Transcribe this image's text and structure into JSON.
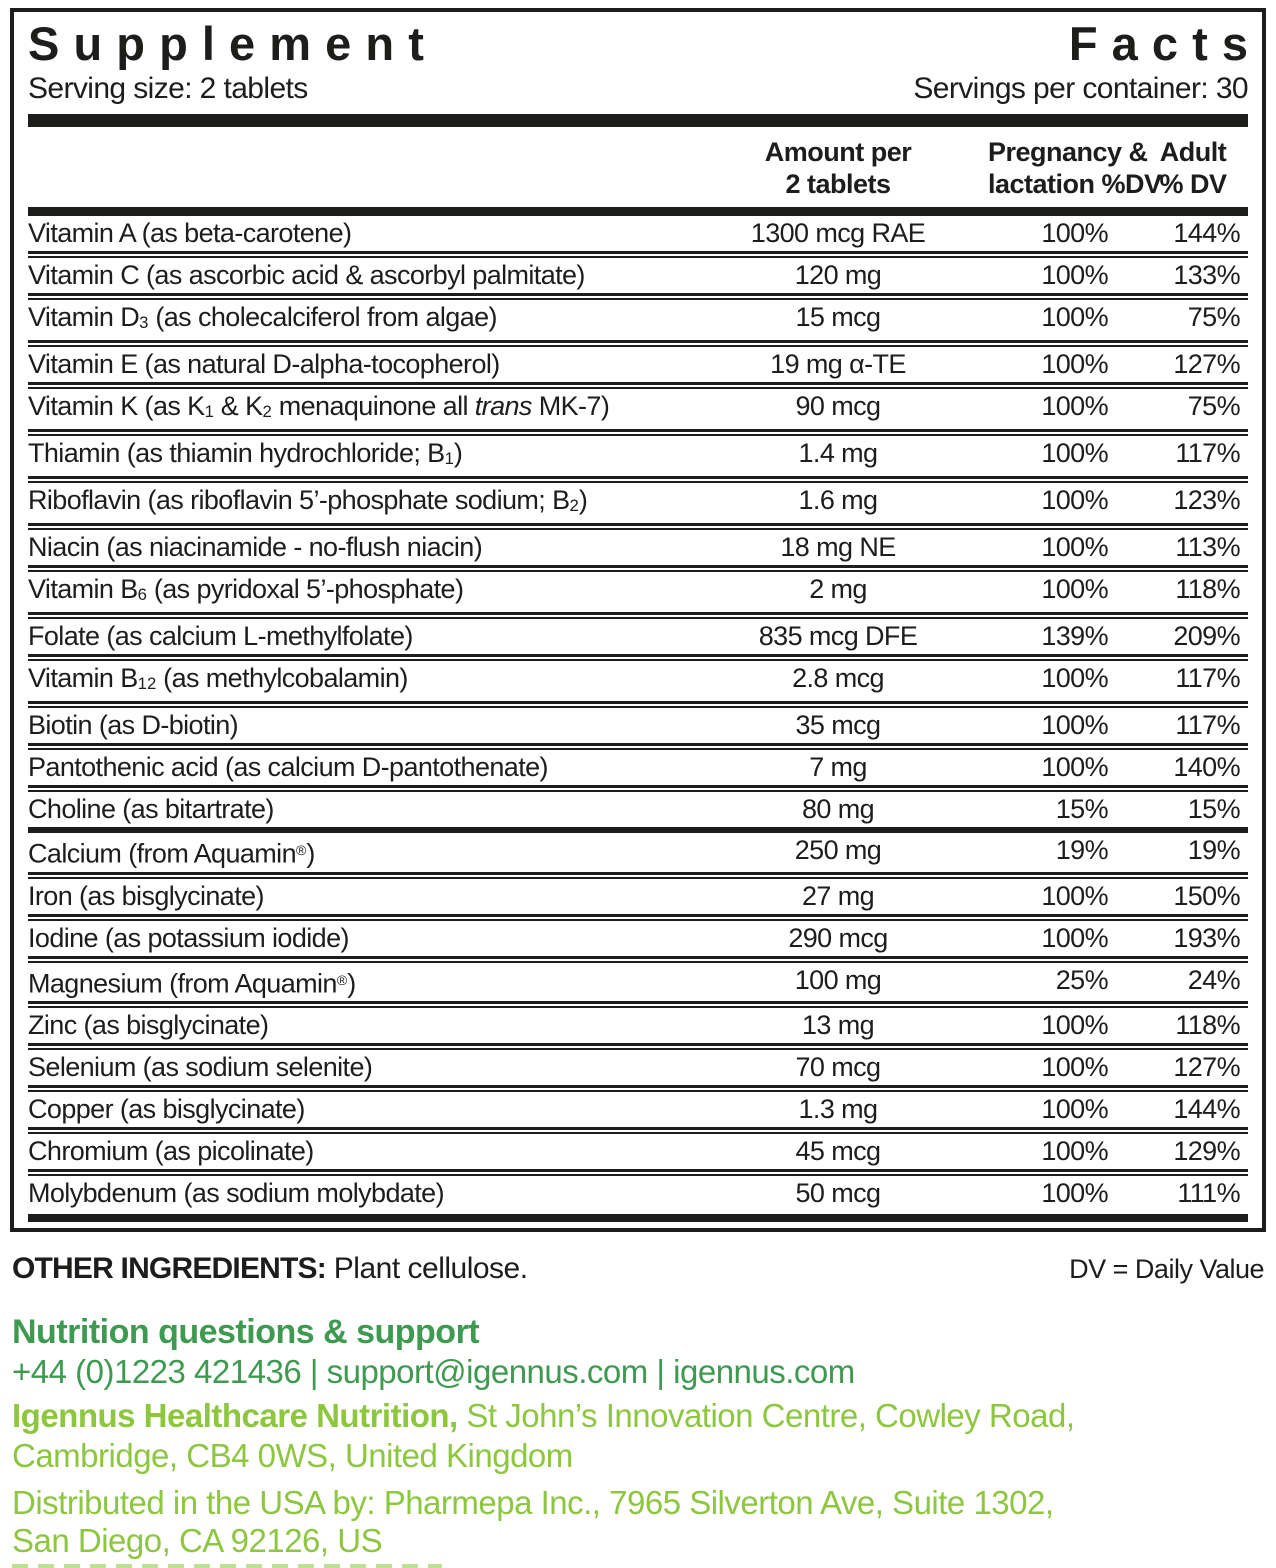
{
  "colors": {
    "ink": "#1d1d1b",
    "green_medium": "#3f9a51",
    "green_light": "#8dc63f"
  },
  "header": {
    "title_left": "Supplement",
    "title_right": "Facts",
    "serving_size": "Serving size: 2 tablets",
    "servings_per_container": "Servings per container: 30"
  },
  "columns": {
    "amount_line1": "Amount per",
    "amount_line2": "2 tablets",
    "pregnancy_line1": "Pregnancy &",
    "pregnancy_line2": "lactation %DV",
    "adult_line1": "Adult",
    "adult_line2": "% DV"
  },
  "rows": [
    {
      "name": "Vitamin A (as beta-carotene)",
      "amount": "1300 mcg RAE",
      "pregnancy": "100%",
      "adult": "144%"
    },
    {
      "name": "Vitamin C (as ascorbic acid & ascorbyl palmitate)",
      "amount": "120 mg",
      "pregnancy": "100%",
      "adult": "133%"
    },
    {
      "name": "Vitamin D~3~ (as cholecalciferol from algae)",
      "amount": "15 mcg",
      "pregnancy": "100%",
      "adult": "75%"
    },
    {
      "name": "Vitamin E (as natural D-alpha-tocopherol)",
      "amount": "19 mg α-TE",
      "pregnancy": "100%",
      "adult": "127%"
    },
    {
      "name": "Vitamin K (as K~1~ & K~2~ menaquinone all *trans* MK-7)",
      "amount": "90 mcg",
      "pregnancy": "100%",
      "adult": "75%"
    },
    {
      "name": "Thiamin (as thiamin hydrochloride; B~1~)",
      "amount": "1.4 mg",
      "pregnancy": "100%",
      "adult": "117%"
    },
    {
      "name": "Riboflavin (as riboflavin 5’-phosphate sodium; B~2~)",
      "amount": "1.6 mg",
      "pregnancy": "100%",
      "adult": "123%"
    },
    {
      "name": "Niacin (as niacinamide - no-flush niacin)",
      "amount": "18 mg NE",
      "pregnancy": "100%",
      "adult": "113%"
    },
    {
      "name": "Vitamin B~6~ (as pyridoxal 5’-phosphate)",
      "amount": "2 mg",
      "pregnancy": "100%",
      "adult": "118%"
    },
    {
      "name": "Folate (as calcium L-methylfolate)",
      "amount": "835 mcg DFE",
      "pregnancy": "139%",
      "adult": "209%"
    },
    {
      "name": "Vitamin B~12~ (as methylcobalamin)",
      "amount": "2.8 mcg",
      "pregnancy": "100%",
      "adult": "117%"
    },
    {
      "name": "Biotin (as D-biotin)",
      "amount": "35 mcg",
      "pregnancy": "100%",
      "adult": "117%"
    },
    {
      "name": "Pantothenic acid (as calcium D-pantothenate)",
      "amount": "7 mg",
      "pregnancy": "100%",
      "adult": "140%"
    },
    {
      "name": "Choline (as bitartrate)",
      "amount": "80 mg",
      "pregnancy": "15%",
      "adult": "15%",
      "break_after": true
    },
    {
      "name": "Calcium (from Aquamin^®^)",
      "amount": "250 mg",
      "pregnancy": "19%",
      "adult": "19%"
    },
    {
      "name": "Iron (as bisglycinate)",
      "amount": "27 mg",
      "pregnancy": "100%",
      "adult": "150%"
    },
    {
      "name": "Iodine (as potassium iodide)",
      "amount": "290 mcg",
      "pregnancy": "100%",
      "adult": "193%"
    },
    {
      "name": "Magnesium (from Aquamin^®^)",
      "amount": "100 mg",
      "pregnancy": "25%",
      "adult": "24%"
    },
    {
      "name": "Zinc (as bisglycinate)",
      "amount": "13 mg",
      "pregnancy": "100%",
      "adult": "118%"
    },
    {
      "name": "Selenium (as sodium selenite)",
      "amount": "70 mcg",
      "pregnancy": "100%",
      "adult": "127%"
    },
    {
      "name": "Copper (as bisglycinate)",
      "amount": "1.3 mg",
      "pregnancy": "100%",
      "adult": "144%"
    },
    {
      "name": "Chromium (as picolinate)",
      "amount": "45 mcg",
      "pregnancy": "100%",
      "adult": "129%"
    },
    {
      "name": "Molybdenum (as sodium molybdate)",
      "amount": "50 mcg",
      "pregnancy": "100%",
      "adult": "111%"
    }
  ],
  "footer": {
    "other_ingredients_label": "OTHER INGREDIENTS:",
    "other_ingredients_value": "Plant cellulose.",
    "dv_note": "DV = Daily Value",
    "support_heading": "Nutrition questions & support",
    "contact_line": "+44 (0)1223 421436 | support@igennus.com | igennus.com",
    "company_bold": "Igennus Healthcare Nutrition,",
    "company_rest_line1": " St John’s Innovation Centre, Cowley Road,",
    "company_line2": "Cambridge, CB4 0WS, United Kingdom",
    "distributed_line1": "Distributed in the USA by: Pharmepa Inc., 7965 Silverton Ave, Suite 1302,",
    "distributed_line2": "San Diego, CA 92126, US"
  }
}
